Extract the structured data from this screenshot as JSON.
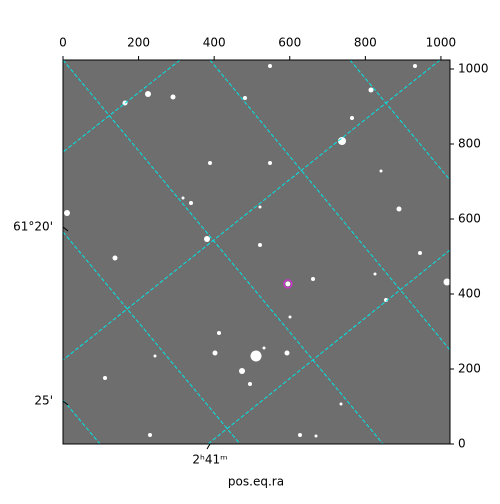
{
  "chart_data": {
    "type": "image",
    "xlabel": "pos.eq.ra",
    "xlim": [
      0,
      1024
    ],
    "ylim": [
      0,
      1024
    ],
    "xticks": [
      0,
      200,
      400,
      600,
      800,
      1000
    ],
    "yticks": [
      0,
      200,
      400,
      600,
      800,
      1000
    ],
    "dec_ticks": [
      "61°20'",
      "25'"
    ],
    "ra_ticks": [
      "2ʰ41ᵐ"
    ],
    "target": {
      "x": 595,
      "y": 427,
      "color": "#cc33cc"
    },
    "grid_color": "#00e5e5"
  }
}
